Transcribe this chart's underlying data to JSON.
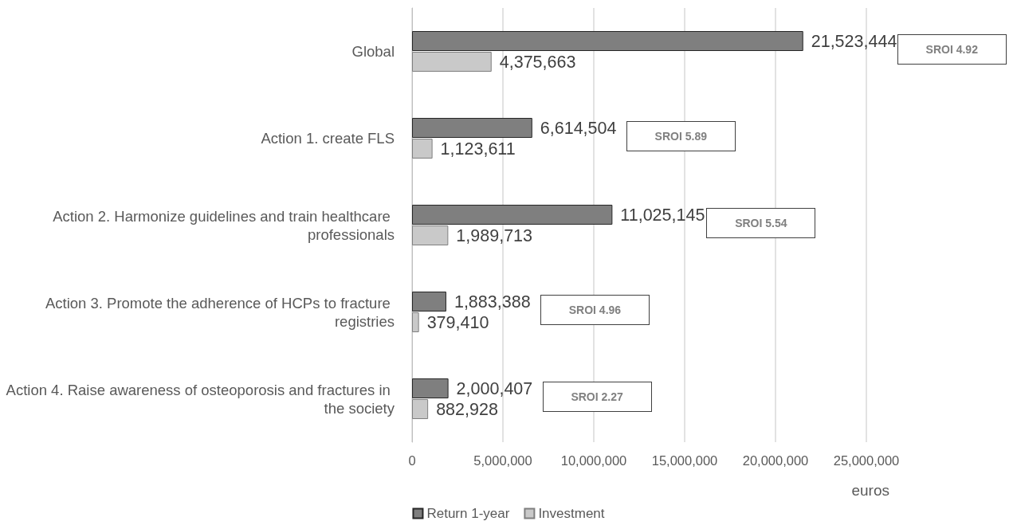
{
  "chart_data": {
    "type": "bar",
    "orientation": "horizontal",
    "categories": [
      "Global",
      "Action 1. create FLS",
      "Action 2. Harmonize guidelines and train healthcare professionals",
      "Action 3. Promote the adherence of HCPs to fracture registries",
      "Action 4. Raise awareness of osteoporosis and fractures in the society"
    ],
    "series": [
      {
        "name": "Return 1-year",
        "color": "#7f7f7f",
        "values": [
          21523444,
          6614504,
          11025145,
          1883388,
          2000407
        ],
        "value_labels": [
          "21,523,444",
          "6,614,504",
          "11,025,145",
          "1,883,388",
          "2,000,407"
        ]
      },
      {
        "name": "Investment",
        "color": "#c9c9c9",
        "values": [
          4375663,
          1123611,
          1989713,
          379410,
          882928
        ],
        "value_labels": [
          "4,375,663",
          "1,123,611",
          "1,989,713",
          "379,410",
          "882,928"
        ]
      }
    ],
    "xlim": [
      0,
      25000000
    ],
    "xticks": [
      0,
      {
        "value": 5000000,
        "label": "5,000,000"
      },
      {
        "value": 10000000,
        "label": "10,000,000"
      },
      {
        "value": 15000000,
        "label": "15,000,000"
      },
      {
        "value": 20000000,
        "label": "20,000,000"
      },
      {
        "value": 25000000,
        "label": "25,000,000"
      }
    ],
    "xlabel": "euros",
    "annotations": [
      "SROI 4.92",
      "SROI 5.89",
      "SROI 5.54",
      "SROI 4.96",
      "SROI 2.27"
    ],
    "grid": "x",
    "legend": "bottom"
  }
}
